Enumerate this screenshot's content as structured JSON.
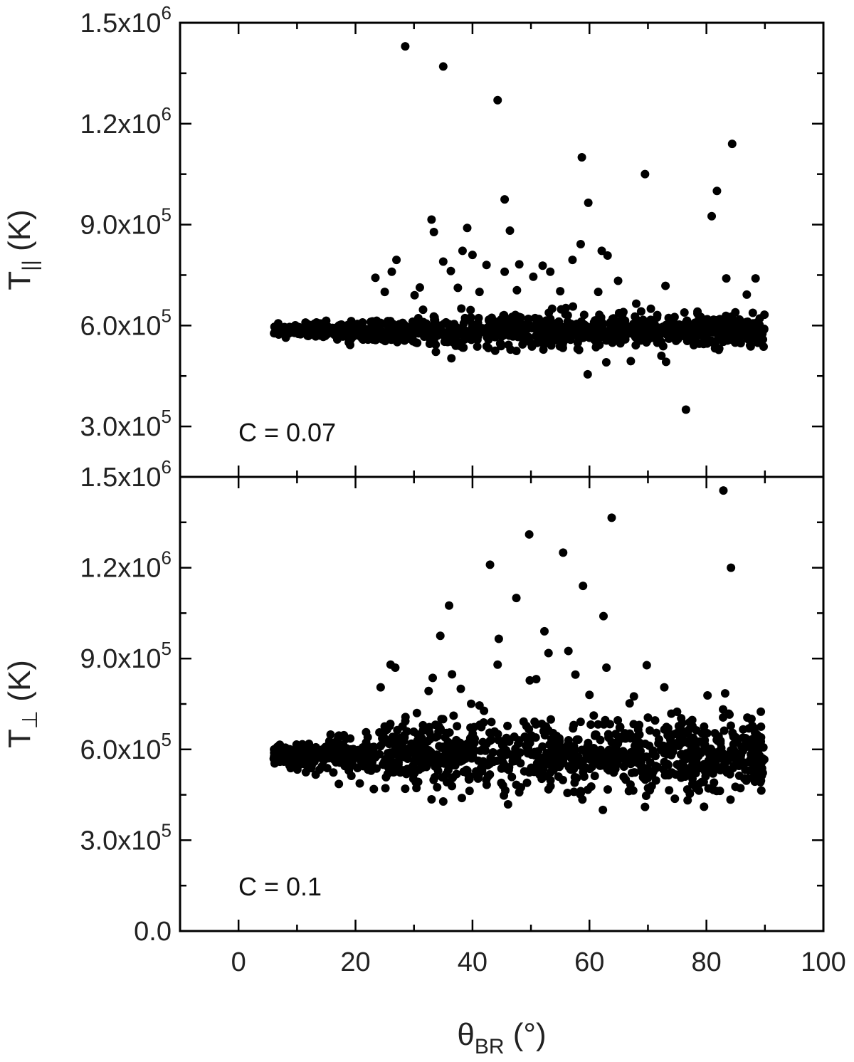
{
  "chart_data": [
    {
      "type": "scatter",
      "panel": "top",
      "ylabel": {
        "main": "T",
        "sub": "||",
        "unit": "(K)"
      },
      "annotation": "C = 0.07",
      "xlim": [
        -10,
        100
      ],
      "ylim": [
        150000,
        1500000
      ],
      "yticks": [
        {
          "value": 300000,
          "mantissa": "3.0x10",
          "exp": "5"
        },
        {
          "value": 600000,
          "mantissa": "6.0x10",
          "exp": "5"
        },
        {
          "value": 900000,
          "mantissa": "9.0x10",
          "exp": "5"
        },
        {
          "value": 1200000,
          "mantissa": "1.2x10",
          "exp": "6"
        },
        {
          "value": 1500000,
          "mantissa": "1.5x10",
          "exp": "6"
        }
      ],
      "cluster": {
        "x_range": [
          6,
          90
        ],
        "center": 585000,
        "spread": 18000
      },
      "points": [
        [
          28.5,
          1430000
        ],
        [
          35.0,
          1370000
        ],
        [
          44.3,
          1270000
        ],
        [
          58.7,
          1100000
        ],
        [
          69.5,
          1050000
        ],
        [
          84.4,
          1140000
        ],
        [
          45.5,
          975000
        ],
        [
          59.8,
          965000
        ],
        [
          33.0,
          915000
        ],
        [
          81.8,
          1000000
        ],
        [
          80.9,
          925000
        ],
        [
          33.4,
          878000
        ],
        [
          39.1,
          890000
        ],
        [
          46.4,
          882000
        ],
        [
          38.3,
          822000
        ],
        [
          40.0,
          810000
        ],
        [
          27.0,
          795000
        ],
        [
          35.0,
          790000
        ],
        [
          42.4,
          780000
        ],
        [
          48.0,
          782000
        ],
        [
          52.0,
          778000
        ],
        [
          57.1,
          795000
        ],
        [
          58.5,
          842000
        ],
        [
          62.1,
          822000
        ],
        [
          63.1,
          808000
        ],
        [
          64.9,
          733000
        ],
        [
          73.0,
          718000
        ],
        [
          83.4,
          740000
        ],
        [
          88.4,
          740000
        ],
        [
          86.9,
          692000
        ],
        [
          23.4,
          742000
        ],
        [
          26.2,
          760000
        ],
        [
          36.3,
          762000
        ],
        [
          45.5,
          760000
        ],
        [
          50.4,
          745000
        ],
        [
          53.3,
          760000
        ],
        [
          59.7,
          455000
        ],
        [
          72.3,
          510000
        ],
        [
          73.1,
          492000
        ],
        [
          76.5,
          350000
        ],
        [
          31.0,
          713000
        ],
        [
          41.2,
          700000
        ],
        [
          55.0,
          702000
        ],
        [
          61.5,
          700000
        ],
        [
          65.8,
          640000
        ],
        [
          68.0,
          665000
        ],
        [
          70.5,
          650000
        ],
        [
          78.2,
          575000
        ],
        [
          30.1,
          690000
        ],
        [
          47.6,
          705000
        ],
        [
          25.0,
          700000
        ],
        [
          37.5,
          712000
        ]
      ]
    },
    {
      "type": "scatter",
      "panel": "bottom",
      "ylabel": {
        "main": "T",
        "sub": "⊥",
        "unit": "(K)"
      },
      "annotation": "C = 0.1",
      "xlabel": {
        "main": "θ",
        "sub": "BR",
        "unit": "(°)"
      },
      "xlim": [
        -10,
        100
      ],
      "ylim": [
        0,
        1500000
      ],
      "xticks": [
        0,
        20,
        40,
        60,
        80,
        100
      ],
      "yticks": [
        {
          "value": 0,
          "mantissa": "0.0",
          "exp": ""
        },
        {
          "value": 300000,
          "mantissa": "3.0x10",
          "exp": "5"
        },
        {
          "value": 600000,
          "mantissa": "6.0x10",
          "exp": "5"
        },
        {
          "value": 900000,
          "mantissa": "9.0x10",
          "exp": "5"
        },
        {
          "value": 1200000,
          "mantissa": "1.2x10",
          "exp": "6"
        },
        {
          "value": 1500000,
          "mantissa": "1.5x10",
          "exp": "6"
        }
      ],
      "cluster": {
        "x_range": [
          6,
          90
        ],
        "center": 580000,
        "spread": 45000
      },
      "points": [
        [
          82.9,
          1455000
        ],
        [
          63.8,
          1365000
        ],
        [
          49.7,
          1310000
        ],
        [
          55.5,
          1250000
        ],
        [
          43.0,
          1210000
        ],
        [
          84.2,
          1200000
        ],
        [
          58.9,
          1140000
        ],
        [
          47.5,
          1100000
        ],
        [
          36.0,
          1075000
        ],
        [
          62.4,
          1040000
        ],
        [
          52.3,
          990000
        ],
        [
          34.5,
          975000
        ],
        [
          44.5,
          965000
        ],
        [
          53.0,
          918000
        ],
        [
          56.4,
          925000
        ],
        [
          26.0,
          880000
        ],
        [
          26.8,
          870000
        ],
        [
          44.3,
          880000
        ],
        [
          62.9,
          870000
        ],
        [
          69.8,
          878000
        ],
        [
          57.6,
          847000
        ],
        [
          33.2,
          836000
        ],
        [
          36.5,
          848000
        ],
        [
          49.8,
          828000
        ],
        [
          50.9,
          832000
        ],
        [
          38.0,
          800000
        ],
        [
          32.5,
          793000
        ],
        [
          72.8,
          805000
        ],
        [
          83.2,
          785000
        ],
        [
          24.3,
          805000
        ],
        [
          60.0,
          780000
        ],
        [
          67.6,
          775000
        ],
        [
          58.5,
          462000
        ],
        [
          62.3,
          400000
        ],
        [
          69.5,
          410000
        ],
        [
          74.6,
          437000
        ],
        [
          33.0,
          435000
        ],
        [
          35.0,
          428000
        ],
        [
          28.5,
          470000
        ],
        [
          39.5,
          463000
        ],
        [
          47.5,
          483000
        ],
        [
          53.0,
          468000
        ],
        [
          81.2,
          466000
        ],
        [
          82.3,
          463000
        ],
        [
          70.0,
          705000
        ],
        [
          74.0,
          718000
        ],
        [
          87.0,
          705000
        ],
        [
          88.2,
          670000
        ],
        [
          79.6,
          675000
        ],
        [
          65.0,
          640000
        ],
        [
          30.5,
          720000
        ],
        [
          41.2,
          745000
        ]
      ]
    }
  ]
}
